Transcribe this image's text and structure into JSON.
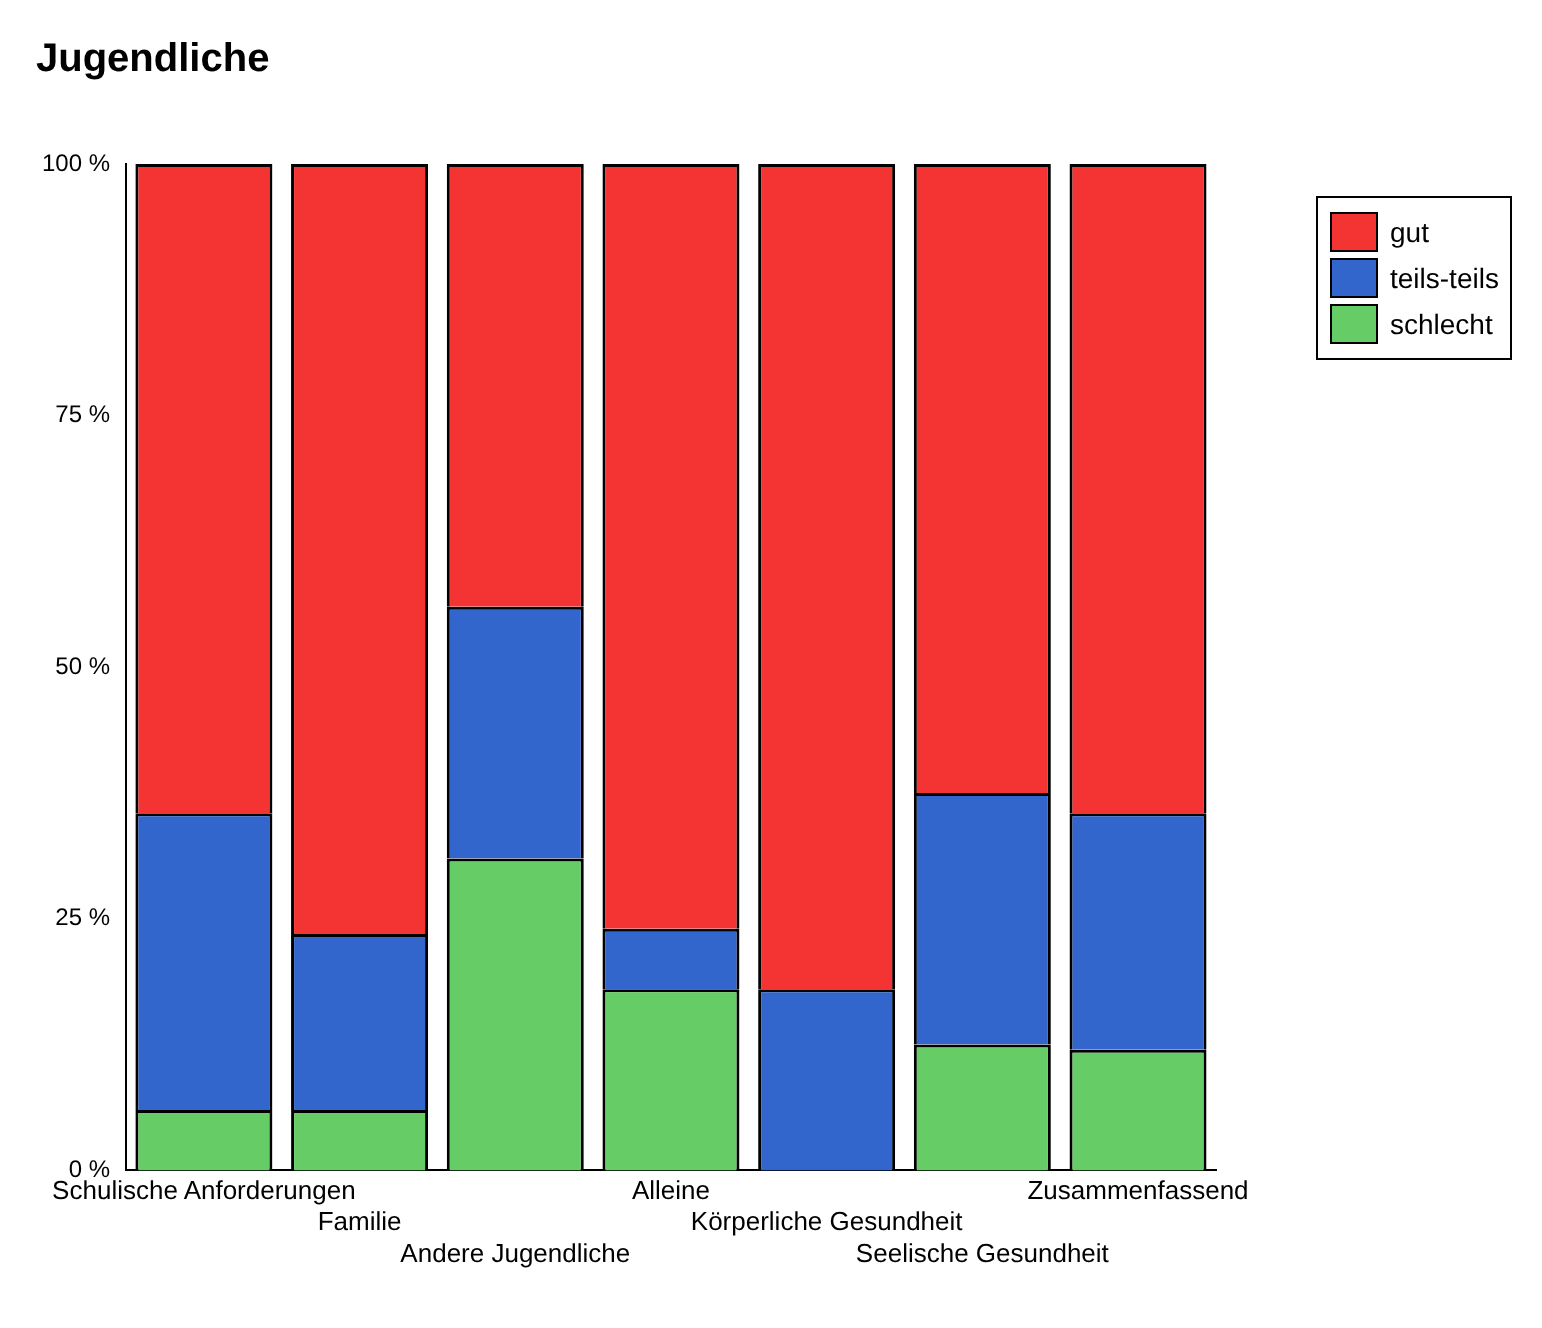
{
  "chart_data": {
    "type": "bar",
    "title": "Jugendliche",
    "stacked": true,
    "categories": [
      "Schulische Anforderungen",
      "Familie",
      "Andere Jugendliche",
      "Alleine",
      "Körperliche Gesundheit",
      "Seelische Gesundheit",
      "Zusammenfassend"
    ],
    "series": [
      {
        "name": "schlecht",
        "color": "#66cc66",
        "values": [
          6,
          6,
          31,
          18,
          0,
          12.5,
          12
        ]
      },
      {
        "name": "teils-teils",
        "color": "#3366cc",
        "values": [
          29.5,
          17.5,
          25,
          6,
          18,
          25,
          23.5
        ]
      },
      {
        "name": "gut",
        "color": "#f43333",
        "values": [
          64.5,
          76.5,
          44,
          76,
          82,
          62.5,
          64.5
        ]
      }
    ],
    "ylim": [
      0,
      100
    ],
    "yticks": [
      {
        "value": 0,
        "label": "0 %"
      },
      {
        "value": 25,
        "label": "25 %"
      },
      {
        "value": 50,
        "label": "50 %"
      },
      {
        "value": 75,
        "label": "75 %"
      },
      {
        "value": 100,
        "label": "100 %"
      }
    ],
    "grid": false,
    "legend": "top right"
  }
}
